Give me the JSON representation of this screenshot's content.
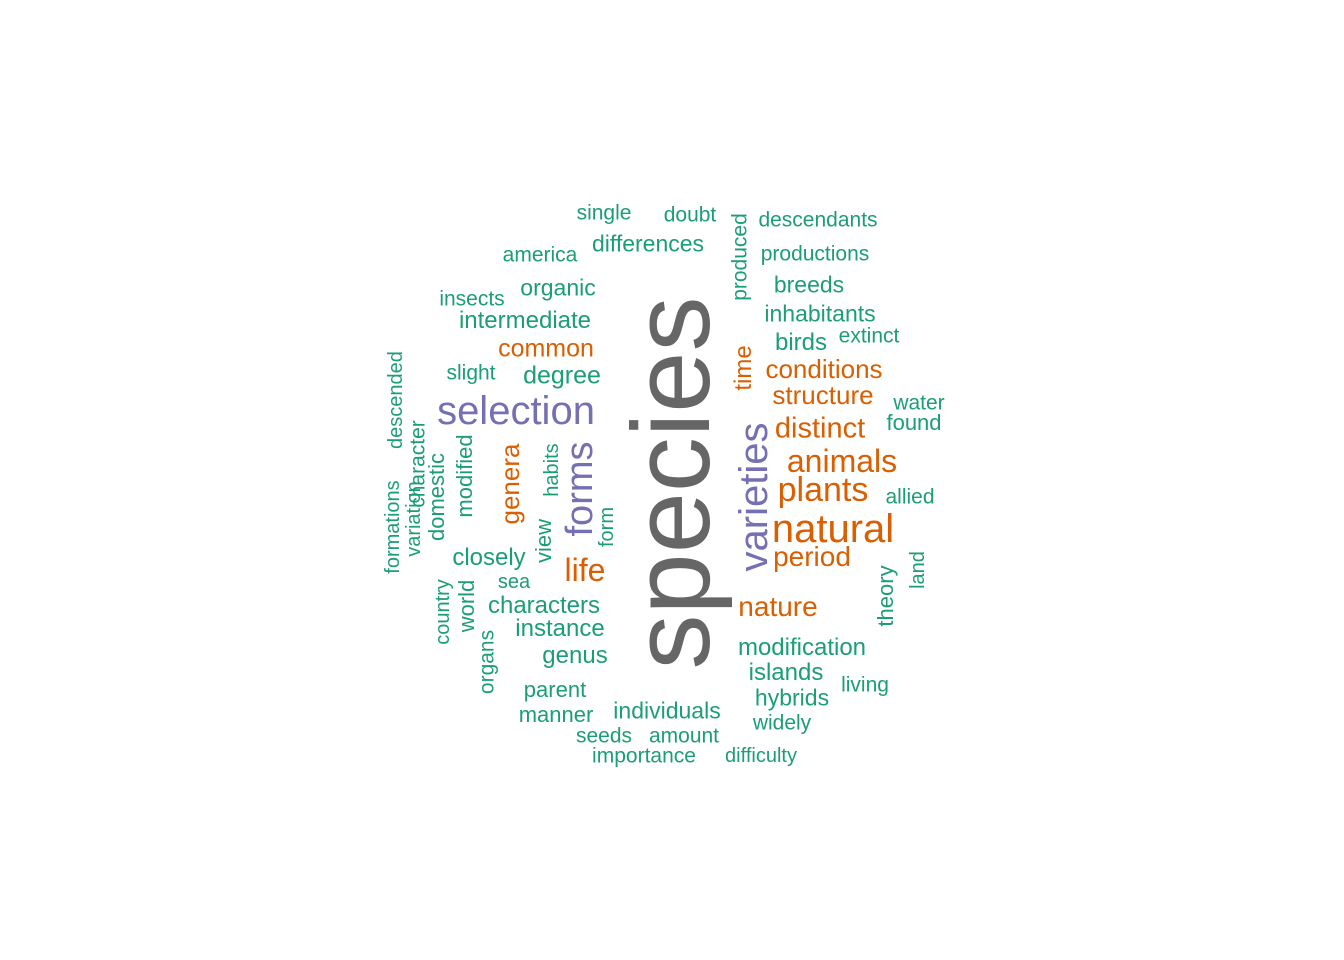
{
  "palette": {
    "teal": "#1b9e77",
    "orange": "#d95f02",
    "purple": "#7570b3",
    "gray": "#666666"
  },
  "words": [
    {
      "text": "species",
      "color": "gray",
      "rotated": true
    },
    {
      "text": "selection",
      "color": "purple",
      "rotated": false
    },
    {
      "text": "varieties",
      "color": "purple",
      "rotated": true
    },
    {
      "text": "forms",
      "color": "purple",
      "rotated": true
    },
    {
      "text": "natural",
      "color": "orange",
      "rotated": false
    },
    {
      "text": "plants",
      "color": "orange",
      "rotated": false
    },
    {
      "text": "animals",
      "color": "orange",
      "rotated": false
    },
    {
      "text": "distinct",
      "color": "orange",
      "rotated": false
    },
    {
      "text": "structure",
      "color": "orange",
      "rotated": false
    },
    {
      "text": "conditions",
      "color": "orange",
      "rotated": false
    },
    {
      "text": "period",
      "color": "orange",
      "rotated": false
    },
    {
      "text": "nature",
      "color": "orange",
      "rotated": false
    },
    {
      "text": "life",
      "color": "orange",
      "rotated": false
    },
    {
      "text": "genera",
      "color": "orange",
      "rotated": true
    },
    {
      "text": "common",
      "color": "orange",
      "rotated": false
    },
    {
      "text": "time",
      "color": "orange",
      "rotated": true
    },
    {
      "text": "single",
      "color": "teal",
      "rotated": false
    },
    {
      "text": "doubt",
      "color": "teal",
      "rotated": false
    },
    {
      "text": "descendants",
      "color": "teal",
      "rotated": false
    },
    {
      "text": "differences",
      "color": "teal",
      "rotated": false
    },
    {
      "text": "produced",
      "color": "teal",
      "rotated": true
    },
    {
      "text": "america",
      "color": "teal",
      "rotated": false
    },
    {
      "text": "productions",
      "color": "teal",
      "rotated": false
    },
    {
      "text": "organic",
      "color": "teal",
      "rotated": false
    },
    {
      "text": "breeds",
      "color": "teal",
      "rotated": false
    },
    {
      "text": "insects",
      "color": "teal",
      "rotated": false
    },
    {
      "text": "inhabitants",
      "color": "teal",
      "rotated": false
    },
    {
      "text": "intermediate",
      "color": "teal",
      "rotated": false
    },
    {
      "text": "extinct",
      "color": "teal",
      "rotated": false
    },
    {
      "text": "birds",
      "color": "teal",
      "rotated": false
    },
    {
      "text": "slight",
      "color": "teal",
      "rotated": false
    },
    {
      "text": "degree",
      "color": "teal",
      "rotated": false
    },
    {
      "text": "descended",
      "color": "teal",
      "rotated": true
    },
    {
      "text": "water",
      "color": "teal",
      "rotated": false
    },
    {
      "text": "character",
      "color": "teal",
      "rotated": true
    },
    {
      "text": "found",
      "color": "teal",
      "rotated": false
    },
    {
      "text": "modified",
      "color": "teal",
      "rotated": true
    },
    {
      "text": "domestic",
      "color": "teal",
      "rotated": true
    },
    {
      "text": "habits",
      "color": "teal",
      "rotated": true
    },
    {
      "text": "allied",
      "color": "teal",
      "rotated": false
    },
    {
      "text": "formations",
      "color": "teal",
      "rotated": true
    },
    {
      "text": "variation",
      "color": "teal",
      "rotated": true
    },
    {
      "text": "view",
      "color": "teal",
      "rotated": true
    },
    {
      "text": "form",
      "color": "teal",
      "rotated": true
    },
    {
      "text": "closely",
      "color": "teal",
      "rotated": false
    },
    {
      "text": "land",
      "color": "teal",
      "rotated": true
    },
    {
      "text": "sea",
      "color": "teal",
      "rotated": false
    },
    {
      "text": "theory",
      "color": "teal",
      "rotated": true
    },
    {
      "text": "world",
      "color": "teal",
      "rotated": true
    },
    {
      "text": "country",
      "color": "teal",
      "rotated": true
    },
    {
      "text": "characters",
      "color": "teal",
      "rotated": false
    },
    {
      "text": "instance",
      "color": "teal",
      "rotated": false
    },
    {
      "text": "organs",
      "color": "teal",
      "rotated": true
    },
    {
      "text": "modification",
      "color": "teal",
      "rotated": false
    },
    {
      "text": "genus",
      "color": "teal",
      "rotated": false
    },
    {
      "text": "islands",
      "color": "teal",
      "rotated": false
    },
    {
      "text": "living",
      "color": "teal",
      "rotated": false
    },
    {
      "text": "parent",
      "color": "teal",
      "rotated": false
    },
    {
      "text": "hybrids",
      "color": "teal",
      "rotated": false
    },
    {
      "text": "manner",
      "color": "teal",
      "rotated": false
    },
    {
      "text": "individuals",
      "color": "teal",
      "rotated": false
    },
    {
      "text": "widely",
      "color": "teal",
      "rotated": false
    },
    {
      "text": "seeds",
      "color": "teal",
      "rotated": false
    },
    {
      "text": "amount",
      "color": "teal",
      "rotated": false
    },
    {
      "text": "importance",
      "color": "teal",
      "rotated": false
    },
    {
      "text": "difficulty",
      "color": "teal",
      "rotated": false
    }
  ]
}
